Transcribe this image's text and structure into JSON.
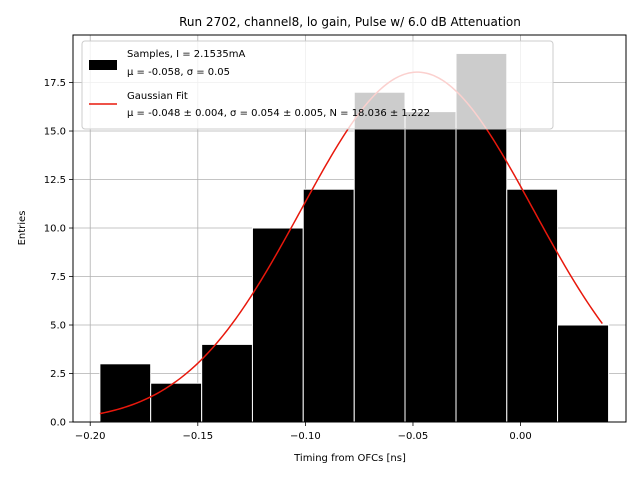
{
  "chart_data": {
    "type": "bar",
    "title": "Run 2702, channel8, lo gain, Pulse w/ 6.0 dB Attenuation",
    "xlabel": "Timing from OFCs [ns]",
    "ylabel": "Entries",
    "xlim": [
      -0.208,
      0.049
    ],
    "ylim": [
      0,
      19.95
    ],
    "xticks": [
      -0.2,
      -0.15,
      -0.1,
      -0.05,
      0.0
    ],
    "xtick_labels": [
      "−0.20",
      "−0.15",
      "−0.10",
      "−0.05",
      "0.00"
    ],
    "yticks": [
      0.0,
      2.5,
      5.0,
      7.5,
      10.0,
      12.5,
      15.0,
      17.5
    ],
    "ytick_labels": [
      "0.0",
      "2.5",
      "5.0",
      "7.5",
      "10.0",
      "12.5",
      "15.0",
      "17.5"
    ],
    "grid": true,
    "legend_position": "top-left",
    "bin_edges": [
      -0.1955,
      -0.1719,
      -0.1482,
      -0.1246,
      -0.101,
      -0.0773,
      -0.0537,
      -0.03,
      -0.0064,
      0.0172,
      0.0409
    ],
    "series": [
      {
        "name": "Samples, I = 2.1535mA",
        "name_line2": "μ = -0.058, σ = 0.05",
        "type": "histogram",
        "values": [
          3,
          2,
          4,
          10,
          12,
          17,
          16,
          19,
          12,
          5
        ],
        "color": "#000000"
      },
      {
        "name": "Gaussian Fit",
        "name_line2": "μ = -0.048 ± 0.004, σ = 0.054 ± 0.005, N = 18.036 ± 1.222",
        "type": "line",
        "mu": -0.048,
        "sigma": 0.054,
        "amplitude": 18.036,
        "x_range": [
          -0.1955,
          0.038
        ],
        "color": "#e8180c"
      }
    ]
  }
}
